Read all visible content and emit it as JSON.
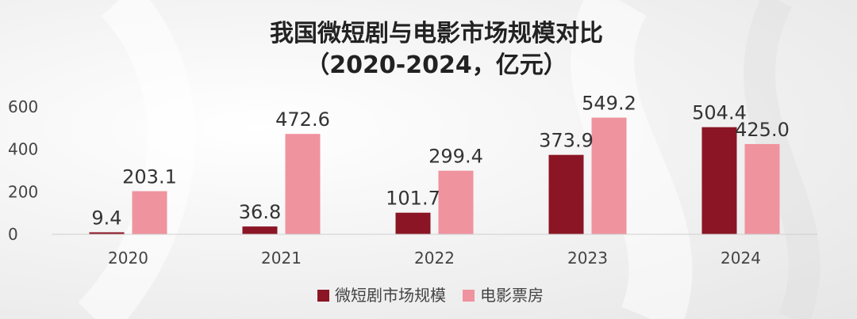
{
  "chart_data": {
    "type": "bar",
    "title": "我国微短剧与电影市场规模对比",
    "subtitle": "（2020-2024，亿元）",
    "categories": [
      "2020",
      "2021",
      "2022",
      "2023",
      "2024"
    ],
    "series": [
      {
        "name": "微短剧市场规模",
        "color": "#8b1524",
        "values": [
          9.4,
          36.8,
          101.7,
          373.9,
          504.4
        ]
      },
      {
        "name": "电影票房",
        "color": "#ef939e",
        "values": [
          203.1,
          472.6,
          299.4,
          549.2,
          425.0
        ]
      }
    ],
    "y_ticks": [
      0,
      200,
      400,
      600
    ],
    "ylim": [
      0,
      600
    ],
    "grid": false,
    "legend_position": "bottom"
  }
}
